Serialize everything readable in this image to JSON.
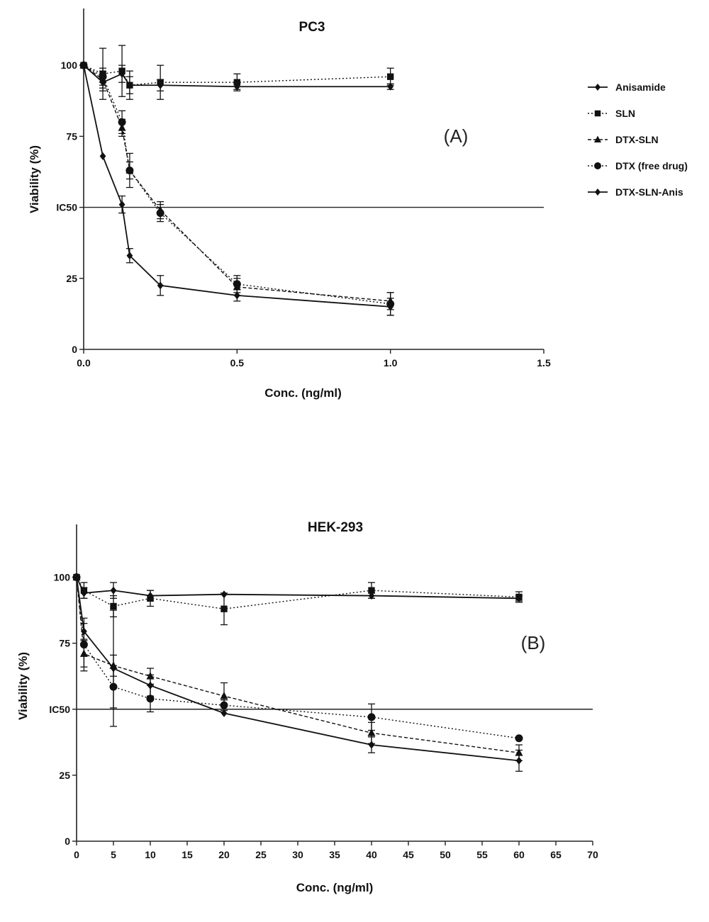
{
  "chart_data": [
    {
      "type": "line",
      "title": "PC3",
      "panel_label": "(A)",
      "xlabel": "Conc. (ng/ml)",
      "ylabel": "Viability (%)",
      "xlim": [
        0,
        1.5
      ],
      "ylim": [
        0,
        120
      ],
      "x_ticks": [
        "0.0",
        "0.5",
        "1.0",
        "1.5"
      ],
      "y_ticks": [
        "0",
        "25",
        "IC50",
        "75",
        "100"
      ],
      "y_tick_values": [
        0,
        25,
        50,
        75,
        100
      ],
      "reference_line": 50,
      "legend_position": "right",
      "series": [
        {
          "name": "Anisamide",
          "marker": "diamond",
          "line": "solid",
          "x": [
            0,
            0.0625,
            0.125,
            0.15,
            0.25,
            0.5,
            1.0
          ],
          "y": [
            100,
            94,
            97,
            93,
            93,
            92.5,
            92.5
          ],
          "err": [
            0,
            3,
            3,
            3,
            2,
            1,
            1
          ]
        },
        {
          "name": "SLN",
          "marker": "square",
          "line": "dotted",
          "x": [
            0,
            0.0625,
            0.125,
            0.15,
            0.25,
            0.5,
            1.0
          ],
          "y": [
            100,
            97,
            98,
            93,
            94,
            94,
            96
          ],
          "err": [
            0,
            9,
            9,
            5,
            6,
            3,
            3
          ]
        },
        {
          "name": "DTX-SLN",
          "marker": "triangle",
          "line": "dashed",
          "x": [
            0,
            0.0625,
            0.125,
            0.15,
            0.25,
            0.5,
            1.0
          ],
          "y": [
            100,
            95,
            78,
            63,
            49,
            22,
            17
          ],
          "err": [
            0,
            3,
            3,
            3,
            3,
            3,
            3
          ]
        },
        {
          "name": "DTX (free drug)",
          "marker": "circle",
          "line": "dotted",
          "x": [
            0,
            0.0625,
            0.125,
            0.15,
            0.25,
            0.5,
            1.0
          ],
          "y": [
            100,
            96,
            80,
            63,
            48,
            23,
            16
          ],
          "err": [
            0,
            3,
            4,
            6,
            3,
            3,
            4
          ]
        },
        {
          "name": "DTX-SLN-Anis",
          "marker": "diamond",
          "line": "solid",
          "x": [
            0,
            0.0625,
            0.125,
            0.15,
            0.25,
            0.5,
            1.0
          ],
          "y": [
            100,
            68,
            51,
            33,
            22.5,
            19,
            15
          ],
          "err": [
            0,
            0,
            3,
            2.5,
            3.5,
            2,
            3
          ]
        }
      ]
    },
    {
      "type": "line",
      "title": "HEK-293",
      "panel_label": "(B)",
      "xlabel": "Conc. (ng/ml)",
      "ylabel": "Viability (%)",
      "xlim": [
        0,
        70
      ],
      "ylim": [
        0,
        120
      ],
      "x_ticks": [
        "0",
        "5",
        "10",
        "15",
        "20",
        "25",
        "30",
        "35",
        "40",
        "45",
        "50",
        "55",
        "60",
        "65",
        "70"
      ],
      "y_ticks": [
        "0",
        "25",
        "IC50",
        "75",
        "100"
      ],
      "y_tick_values": [
        0,
        25,
        50,
        75,
        100
      ],
      "reference_line": 50,
      "series": [
        {
          "name": "Anisamide",
          "marker": "diamond",
          "line": "solid",
          "x": [
            0,
            1,
            5,
            10,
            20,
            40,
            60
          ],
          "y": [
            100,
            94,
            95,
            93,
            93.5,
            93,
            92
          ],
          "err": [
            0,
            2,
            3,
            2,
            0,
            1,
            1
          ]
        },
        {
          "name": "SLN",
          "marker": "square",
          "line": "dotted",
          "x": [
            0,
            1,
            5,
            10,
            20,
            40,
            60
          ],
          "y": [
            100,
            95,
            89,
            92,
            88,
            95,
            92.5
          ],
          "err": [
            0,
            3,
            4,
            3,
            6,
            3,
            2
          ]
        },
        {
          "name": "DTX-SLN",
          "marker": "triangle",
          "line": "dashed",
          "x": [
            0,
            1,
            5,
            10,
            20,
            40,
            60
          ],
          "y": [
            100,
            71,
            66.5,
            62.5,
            55,
            41,
            33.5
          ],
          "err": [
            0,
            5,
            4,
            3,
            5,
            4,
            3
          ]
        },
        {
          "name": "DTX (free drug)",
          "marker": "circle",
          "line": "dotted",
          "x": [
            0,
            1,
            5,
            10,
            20,
            40,
            60
          ],
          "y": [
            100,
            74.5,
            58.5,
            54,
            51.5,
            47,
            39
          ],
          "err": [
            0,
            10,
            8,
            5,
            2,
            5,
            0
          ]
        },
        {
          "name": "DTX-SLN-Anis",
          "marker": "diamond",
          "line": "solid",
          "x": [
            0,
            1,
            5,
            10,
            20,
            40,
            60
          ],
          "y": [
            100,
            79.5,
            65.5,
            59,
            48.5,
            36.5,
            30.5
          ],
          "err": [
            0,
            3,
            22,
            4,
            0,
            3,
            4
          ]
        }
      ]
    }
  ]
}
